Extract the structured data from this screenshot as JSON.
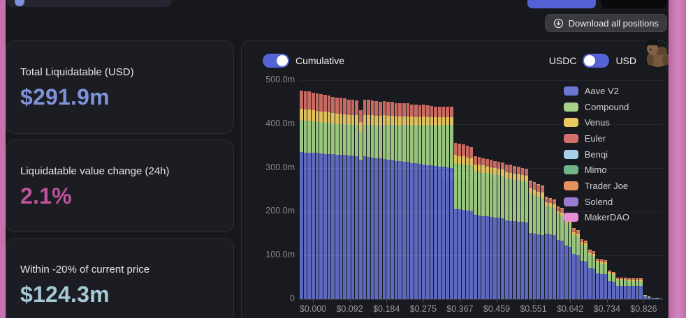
{
  "page": {
    "frame_color": "#c672ae",
    "app_background": "#17181c"
  },
  "topbar": {
    "download_button": {
      "label": "Download all positions"
    }
  },
  "stats": {
    "cards": [
      {
        "label": "Total Liquidatable (USD)",
        "value": "$291.9m",
        "color": "#7e92da"
      },
      {
        "label": "Liquidatable value change (24h)",
        "value": "2.1%",
        "color": "#bd539c"
      },
      {
        "label": "Within -20% of current price",
        "value": "$124.3m",
        "color": "#a6c9d6"
      }
    ]
  },
  "chart": {
    "cumulative_toggle_label": "Cumulative",
    "cumulative_on": true,
    "currency_left": "USDC",
    "currency_right": "USD",
    "currency_knob_side": "left",
    "watermark": "DefiLlama"
  },
  "chart_data": {
    "type": "bar",
    "stacked": true,
    "unit": "USD millions",
    "ylim": [
      0,
      500
    ],
    "y_ticks": [
      {
        "value": 500,
        "label": "500.0m"
      },
      {
        "value": 400,
        "label": "400.0m"
      },
      {
        "value": 300,
        "label": "300.0m"
      },
      {
        "value": 200,
        "label": "200.0m"
      },
      {
        "value": 100,
        "label": "100.0m"
      },
      {
        "value": 0,
        "label": "0"
      }
    ],
    "x_tick_labels": [
      "$0.000",
      "$0.092",
      "$0.184",
      "$0.275",
      "$0.367",
      "$0.459",
      "$0.551",
      "$0.642",
      "$0.734",
      "$0.826"
    ],
    "legend": [
      {
        "name": "Aave V2",
        "color": "#6b77d4"
      },
      {
        "name": "Compound",
        "color": "#a5d189"
      },
      {
        "name": "Venus",
        "color": "#ecc95f"
      },
      {
        "name": "Euler",
        "color": "#d2706b"
      },
      {
        "name": "Benqi",
        "color": "#a6cfec"
      },
      {
        "name": "Mimo",
        "color": "#71b586"
      },
      {
        "name": "Trader Joe",
        "color": "#e69260"
      },
      {
        "name": "Solend",
        "color": "#9a7bd0"
      },
      {
        "name": "MakerDAO",
        "color": "#e88fd3"
      }
    ],
    "segment_keys": [
      "Aave V2",
      "Compound",
      "Venus",
      "Euler",
      "Trader Joe"
    ],
    "segment_colors": {
      "Aave V2": "#5d69bf",
      "Compound": "#99c57f",
      "Venus": "#dfc05d",
      "Euler": "#c66a62",
      "Trader Joe": "#d98a58"
    },
    "bars": [
      [
        336,
        72,
        26,
        42,
        0
      ],
      [
        335,
        72,
        26,
        41,
        0
      ],
      [
        335,
        72,
        26,
        41,
        0
      ],
      [
        334,
        72,
        25,
        40,
        0
      ],
      [
        334,
        71,
        25,
        40,
        0
      ],
      [
        333,
        71,
        25,
        39,
        0
      ],
      [
        332,
        71,
        25,
        39,
        0
      ],
      [
        332,
        71,
        24,
        38,
        0
      ],
      [
        331,
        70,
        24,
        37,
        0
      ],
      [
        330,
        70,
        24,
        37,
        0
      ],
      [
        330,
        70,
        24,
        36,
        0
      ],
      [
        329,
        70,
        23,
        36,
        0
      ],
      [
        328,
        70,
        23,
        35,
        0
      ],
      [
        328,
        70,
        23,
        35,
        0
      ],
      [
        327,
        70,
        23,
        34,
        0
      ],
      [
        318,
        66,
        20,
        28,
        0
      ],
      [
        326,
        72,
        23,
        34,
        0
      ],
      [
        325,
        73,
        23,
        34,
        0
      ],
      [
        324,
        74,
        23,
        33,
        0
      ],
      [
        322,
        75,
        22,
        33,
        0
      ],
      [
        321,
        76,
        22,
        32,
        0
      ],
      [
        320,
        78,
        22,
        32,
        0
      ],
      [
        319,
        79,
        21,
        31,
        0
      ],
      [
        318,
        80,
        21,
        31,
        0
      ],
      [
        316,
        81,
        21,
        30,
        0
      ],
      [
        315,
        82,
        20,
        30,
        0
      ],
      [
        314,
        84,
        20,
        29,
        0
      ],
      [
        313,
        85,
        20,
        29,
        0
      ],
      [
        311,
        86,
        20,
        28,
        0
      ],
      [
        310,
        87,
        19,
        28,
        0
      ],
      [
        309,
        88,
        19,
        27,
        0
      ],
      [
        308,
        90,
        19,
        27,
        0
      ],
      [
        306,
        91,
        19,
        26,
        0
      ],
      [
        305,
        92,
        18,
        26,
        0
      ],
      [
        304,
        93,
        18,
        25,
        0
      ],
      [
        303,
        94,
        18,
        25,
        0
      ],
      [
        302,
        96,
        18,
        24,
        0
      ],
      [
        301,
        97,
        18,
        24,
        0
      ],
      [
        300,
        98,
        18,
        24,
        0
      ],
      [
        206,
        105,
        18,
        28,
        0
      ],
      [
        205,
        104,
        18,
        28,
        0
      ],
      [
        204,
        104,
        18,
        27,
        0
      ],
      [
        203,
        103,
        17,
        27,
        0
      ],
      [
        202,
        103,
        17,
        26,
        0
      ],
      [
        192,
        100,
        16,
        18,
        0
      ],
      [
        191,
        100,
        16,
        18,
        0
      ],
      [
        190,
        99,
        16,
        17,
        0
      ],
      [
        189,
        99,
        15,
        17,
        0
      ],
      [
        188,
        98,
        15,
        17,
        0
      ],
      [
        187,
        98,
        15,
        16,
        0
      ],
      [
        186,
        97,
        15,
        16,
        0
      ],
      [
        185,
        97,
        14,
        16,
        0
      ],
      [
        180,
        96,
        14,
        18,
        0
      ],
      [
        179,
        96,
        14,
        18,
        0
      ],
      [
        178,
        95,
        14,
        17,
        0
      ],
      [
        177,
        95,
        13,
        17,
        0
      ],
      [
        176,
        94,
        13,
        16,
        0
      ],
      [
        175,
        94,
        13,
        16,
        0
      ],
      [
        152,
        88,
        13,
        15,
        3
      ],
      [
        150,
        87,
        13,
        15,
        3
      ],
      [
        148,
        86,
        12,
        14,
        3
      ],
      [
        146,
        85,
        12,
        14,
        3
      ],
      [
        150,
        64,
        8,
        8,
        4
      ],
      [
        148,
        63,
        8,
        8,
        4
      ],
      [
        146,
        62,
        8,
        8,
        4
      ],
      [
        136,
        58,
        7,
        7,
        4
      ],
      [
        134,
        57,
        7,
        7,
        4
      ],
      [
        122,
        52,
        6,
        6,
        4
      ],
      [
        120,
        51,
        6,
        6,
        4
      ],
      [
        103,
        44,
        6,
        5,
        4
      ],
      [
        101,
        43,
        6,
        5,
        3
      ],
      [
        88,
        37,
        5,
        4,
        3
      ],
      [
        86,
        36,
        5,
        4,
        3
      ],
      [
        72,
        30,
        4,
        4,
        3
      ],
      [
        70,
        29,
        4,
        4,
        3
      ],
      [
        59,
        25,
        4,
        3,
        2
      ],
      [
        58,
        24,
        4,
        3,
        2
      ],
      [
        57,
        24,
        3,
        3,
        2
      ],
      [
        42,
        17,
        3,
        2,
        2
      ],
      [
        40,
        16,
        3,
        2,
        1
      ],
      [
        31,
        13,
        3,
        2,
        1
      ],
      [
        31,
        13,
        3,
        2,
        1
      ],
      [
        31,
        13,
        3,
        2,
        1
      ],
      [
        30,
        12,
        3,
        2,
        1
      ],
      [
        30,
        12,
        3,
        2,
        1
      ],
      [
        30,
        12,
        3,
        2,
        1
      ],
      [
        30,
        12,
        3,
        2,
        1
      ],
      [
        6,
        3,
        1,
        0,
        0
      ],
      [
        4,
        2,
        1,
        0,
        0
      ],
      [
        3,
        1,
        0,
        0,
        0
      ],
      [
        2,
        1,
        0,
        0,
        0
      ],
      [
        1,
        1,
        0,
        0,
        0
      ]
    ]
  }
}
